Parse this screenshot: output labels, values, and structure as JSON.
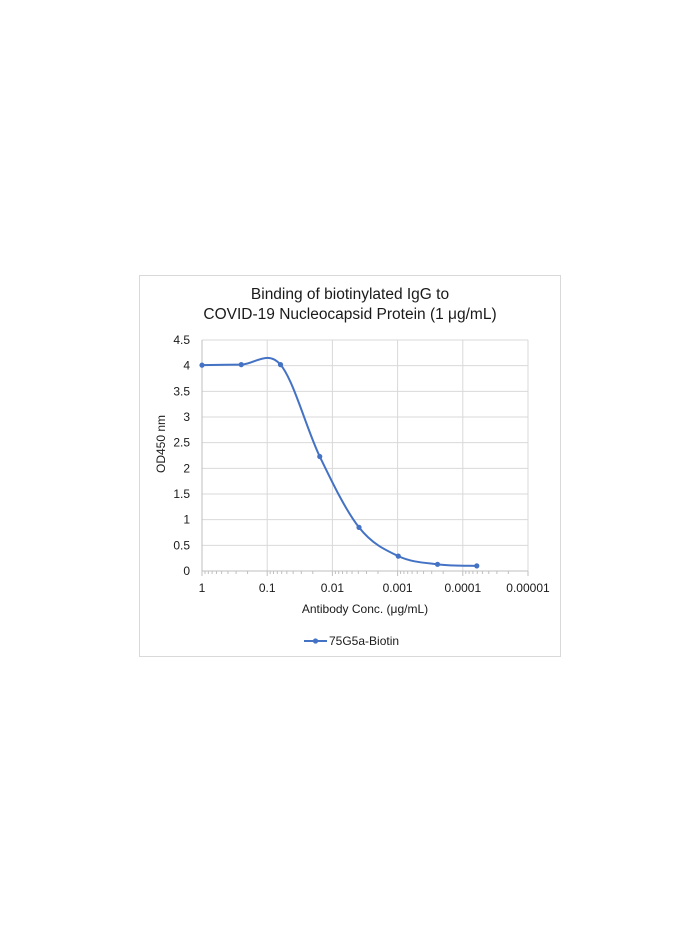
{
  "chart_data": {
    "type": "line",
    "title_lines": [
      "Binding of biotinylated IgG to",
      "COVID-19 Nucleocapsid Protein (1 μg/mL)"
    ],
    "xlabel": "Antibody Conc. (μg/mL)",
    "ylabel": "OD450 nm",
    "x_scale": "log-reversed",
    "x_ticks": [
      1,
      0.1,
      0.01,
      0.001,
      0.0001,
      1e-05
    ],
    "x_tick_labels": [
      "1",
      "0.1",
      "0.01",
      "0.001",
      "0.0001",
      "0.00001"
    ],
    "xlim": [
      1,
      1e-05
    ],
    "y_ticks": [
      0,
      0.5,
      1,
      1.5,
      2,
      2.5,
      3,
      3.5,
      4,
      4.5
    ],
    "y_tick_labels": [
      "0",
      "0.5",
      "1",
      "1.5",
      "2",
      "2.5",
      "3",
      "3.5",
      "4",
      "4.5"
    ],
    "ylim": [
      0,
      4.5
    ],
    "grid": true,
    "legend_position": "bottom",
    "series": [
      {
        "name": "75G5a-Biotin",
        "color": "#4472c4",
        "x": [
          1,
          0.25,
          0.0625,
          0.015625,
          0.00390625,
          0.0009765625,
          0.000244140625,
          6.103515625e-05
        ],
        "y": [
          4.01,
          4.02,
          4.02,
          2.23,
          0.85,
          0.29,
          0.13,
          0.1
        ]
      }
    ]
  }
}
